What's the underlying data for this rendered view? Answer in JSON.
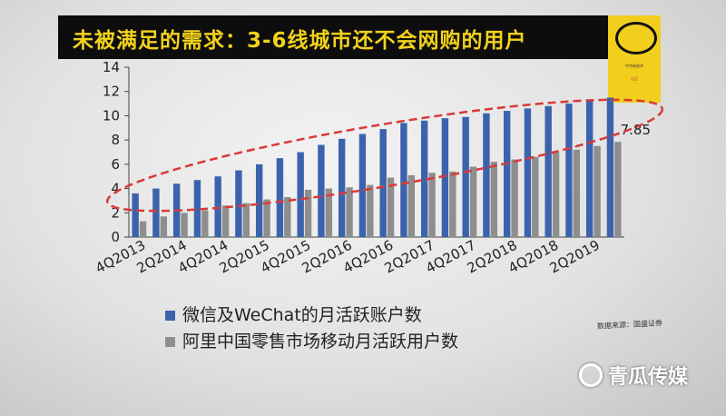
{
  "slide": {
    "title": "未被满足的需求：3-6线城市还不会网购的用户",
    "logo_line_1": "中华新经济",
    "logo_line_2": "出品",
    "source": "数据来源：国盛证券"
  },
  "watermark": {
    "text": "青瓜传媒"
  },
  "colors": {
    "title_bg": "#0d0d0d",
    "title_text": "#f2d21a",
    "logo_bg": "#f2cf1d",
    "series_wechat": "#3b63ad",
    "series_alibaba": "#8e8e8e",
    "highlight_ellipse": "#d93a3a"
  },
  "chart_data": {
    "type": "bar",
    "categories": [
      "4Q2013",
      "1Q2014",
      "2Q2014",
      "3Q2014",
      "4Q2014",
      "1Q2015",
      "2Q2015",
      "3Q2015",
      "4Q2015",
      "1Q2016",
      "2Q2016",
      "3Q2016",
      "4Q2016",
      "1Q2017",
      "2Q2017",
      "3Q2017",
      "4Q2017",
      "1Q2018",
      "2Q2018",
      "3Q2018",
      "4Q2018",
      "1Q2019",
      "2Q2019",
      "3Q2019"
    ],
    "tick_labels": [
      "4Q2013",
      "2Q2014",
      "4Q2014",
      "2Q2015",
      "4Q2015",
      "2Q2016",
      "4Q2016",
      "2Q2017",
      "4Q2017",
      "2Q2018",
      "4Q2018",
      "2Q2019"
    ],
    "series": [
      {
        "name": "微信及WeChat的月活跃账户数",
        "values": [
          3.6,
          4.0,
          4.4,
          4.7,
          5.0,
          5.5,
          6.0,
          6.5,
          7.0,
          7.6,
          8.1,
          8.5,
          8.9,
          9.4,
          9.6,
          9.8,
          9.9,
          10.2,
          10.4,
          10.6,
          10.8,
          11.0,
          11.3,
          11.5
        ]
      },
      {
        "name": "阿里中国零售市场移动月活跃用户数",
        "values": [
          1.3,
          1.7,
          2.0,
          2.2,
          2.6,
          2.8,
          3.1,
          3.3,
          3.9,
          4.0,
          4.1,
          4.3,
          4.9,
          5.1,
          5.3,
          5.4,
          5.8,
          6.2,
          6.4,
          6.6,
          7.0,
          7.2,
          7.5,
          7.85
        ]
      }
    ],
    "data_labels": [
      "7.85"
    ],
    "yticks": [
      "0",
      "2",
      "4",
      "6",
      "8",
      "10",
      "12",
      "14"
    ],
    "ylim": [
      0,
      14
    ],
    "grid": false,
    "legend_position": "bottom"
  }
}
